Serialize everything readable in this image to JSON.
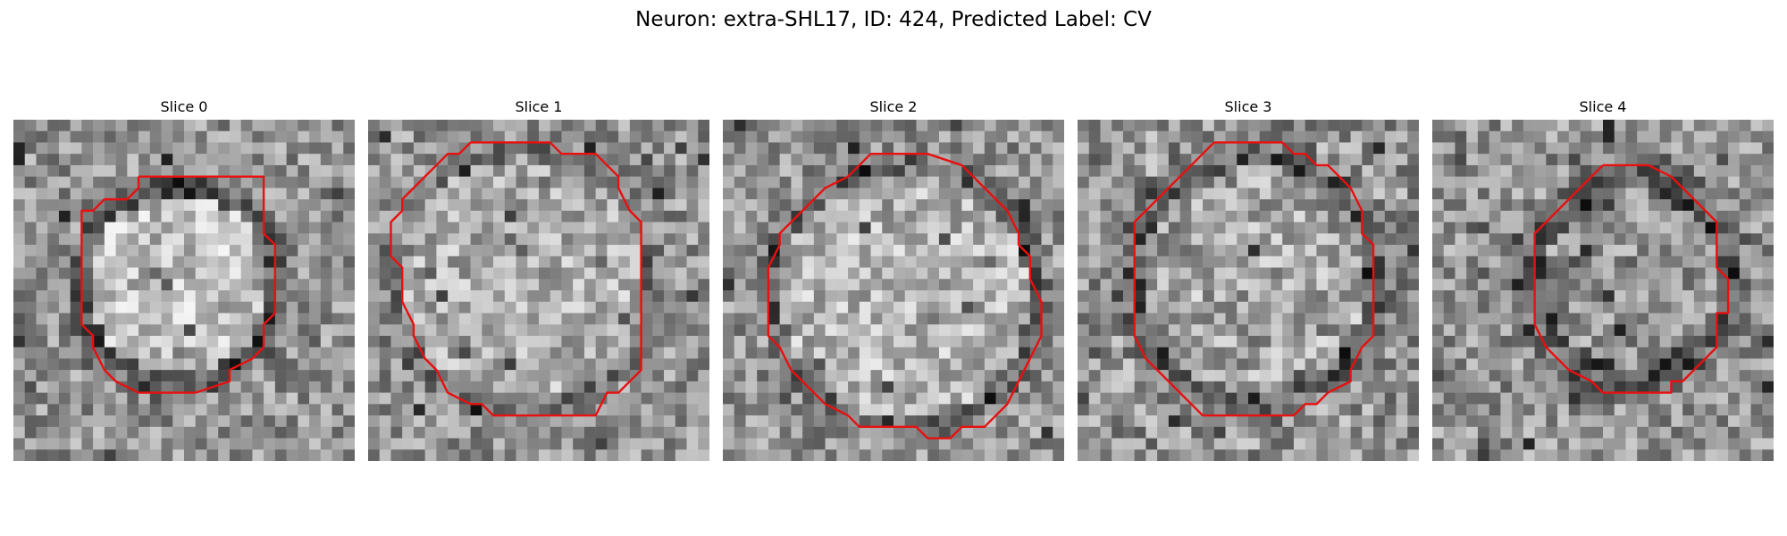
{
  "figure": {
    "title": "Neuron: extra-SHL17, ID: 424, Predicted Label: CV"
  },
  "panels": [
    {
      "title": "Slice 0"
    },
    {
      "title": "Slice 1"
    },
    {
      "title": "Slice 2"
    },
    {
      "title": "Slice 3"
    },
    {
      "title": "Slice 4"
    }
  ],
  "colors": {
    "contour": "#e81010",
    "background": "#ffffff"
  }
}
